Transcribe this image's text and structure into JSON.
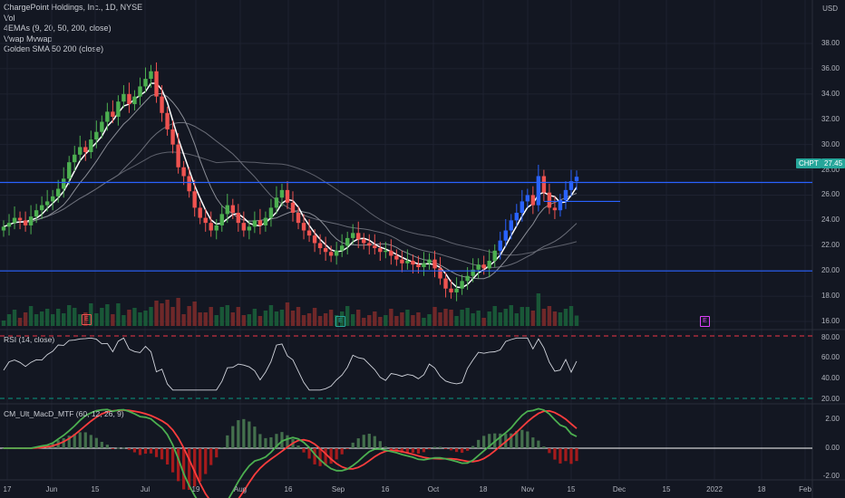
{
  "header": {
    "symbol_title": "ChargePoint Holdings, Inc., 1D, NYSE",
    "indicators": [
      "Vol",
      "4EMAs (9, 20, 50, 200, close)",
      "Vwap Mvwap",
      "Golden SMA 50 200 (close)"
    ]
  },
  "currency": "USD",
  "price_axis": [
    "38.00",
    "36.00",
    "34.00",
    "32.00",
    "30.00",
    "28.00",
    "26.00",
    "24.00",
    "22.00",
    "20.00",
    "18.00",
    "16.00"
  ],
  "last_price": {
    "ticker": "CHPT",
    "value": "27.45"
  },
  "rsi_pane": {
    "title": "RSI (14, close)",
    "levels": [
      "80.00",
      "60.00",
      "40.00",
      "20.00"
    ]
  },
  "macd_pane": {
    "title": "CM_Ult_MacD_MTF (60, 12, 26, 9)",
    "levels": [
      "2.00",
      "0.00",
      "-2.00"
    ]
  },
  "time_axis": [
    "17",
    "Jun",
    "15",
    "Jul",
    "19",
    "Aug",
    "16",
    "Sep",
    "16",
    "Oct",
    "18",
    "Nov",
    "15",
    "Dec",
    "15",
    "2022",
    "18",
    "Feb"
  ],
  "earnings_markers": [
    "E",
    "E",
    "E"
  ],
  "colors": {
    "up": "#26a69a",
    "up_bright": "#4caf50",
    "down": "#ef5350",
    "level": "#2962ff",
    "ema9": "#ffffff",
    "rsi_band": "#f23645",
    "rsi_lower": "#089981"
  },
  "horizontal_levels": [
    27.0,
    20.0
  ],
  "short_level": 25.5,
  "chart_data": {
    "type": "candlestick",
    "title": "ChargePoint Holdings, Inc., 1D, NYSE",
    "ylim": [
      15.5,
      38.5
    ],
    "close_path": [
      23.5,
      23.8,
      24.2,
      24.0,
      23.6,
      24.3,
      24.8,
      25.2,
      25.5,
      25.9,
      26.5,
      27.3,
      28.6,
      29.2,
      29.8,
      29.4,
      30.4,
      31.0,
      31.8,
      32.6,
      32.2,
      33.4,
      34.0,
      33.2,
      33.8,
      34.6,
      35.2,
      35.8,
      33.8,
      32.5,
      31.2,
      30.0,
      28.2,
      27.5,
      26.3,
      25.0,
      24.2,
      23.8,
      23.2,
      23.6,
      24.5,
      25.2,
      24.6,
      23.8,
      23.2,
      23.5,
      24.0,
      23.6,
      24.2,
      25.0,
      25.8,
      26.4,
      25.4,
      24.6,
      23.8,
      23.2,
      22.8,
      22.2,
      21.8,
      21.5,
      21.2,
      21.6,
      22.0,
      22.6,
      23.0,
      22.5,
      22.2,
      22.0,
      21.8,
      21.5,
      21.6,
      21.2,
      20.9,
      20.6,
      20.8,
      20.5,
      20.3,
      20.6,
      20.9,
      20.2,
      19.4,
      18.6,
      18.3,
      18.6,
      19.2,
      19.6,
      20.1,
      20.5,
      20.2,
      20.8,
      21.6,
      22.4,
      23.2,
      24.0,
      24.6,
      25.5,
      26.0,
      25.2,
      27.5,
      26.2,
      25.0,
      24.8,
      25.6,
      26.4,
      27.1,
      27.45
    ]
  }
}
